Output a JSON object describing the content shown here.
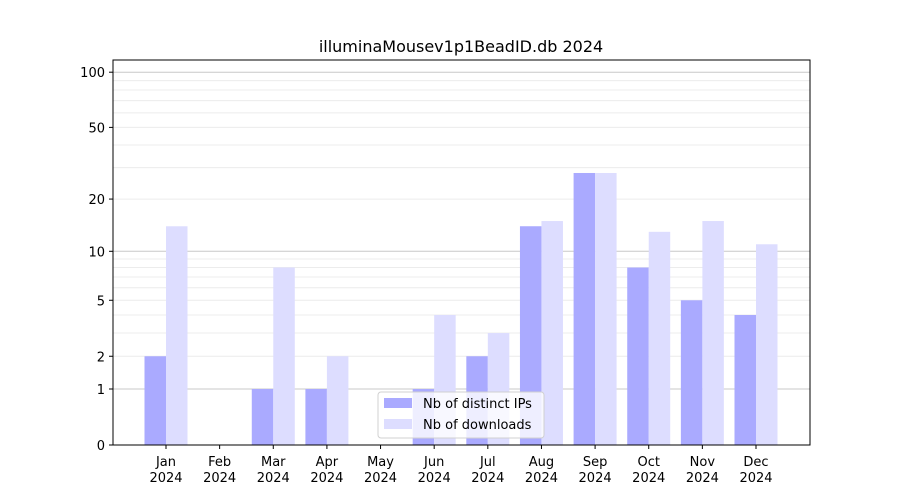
{
  "chart_data": {
    "type": "bar",
    "title": "illuminaMousev1p1BeadID.db 2024",
    "xlabel": "",
    "ylabel": "",
    "yscale": "symlog (log of 1+value)",
    "ylim": [
      0,
      100
    ],
    "yticks": [
      0,
      1,
      2,
      5,
      10,
      20,
      50,
      100
    ],
    "grid": true,
    "legend_position": "bottom-center",
    "categories": [
      "Jan\n2024",
      "Feb\n2024",
      "Mar\n2024",
      "Apr\n2024",
      "May\n2024",
      "Jun\n2024",
      "Jul\n2024",
      "Aug\n2024",
      "Sep\n2024",
      "Oct\n2024",
      "Nov\n2024",
      "Dec\n2024"
    ],
    "series": [
      {
        "name": "Nb of distinct IPs",
        "color": "#aaaaff",
        "values": [
          2,
          0,
          1,
          1,
          0,
          1,
          2,
          14,
          28,
          8,
          5,
          4
        ]
      },
      {
        "name": "Nb of downloads",
        "color": "#ddddff",
        "values": [
          14,
          0,
          8,
          2,
          0,
          4,
          3,
          15,
          28,
          13,
          15,
          11
        ]
      }
    ]
  }
}
